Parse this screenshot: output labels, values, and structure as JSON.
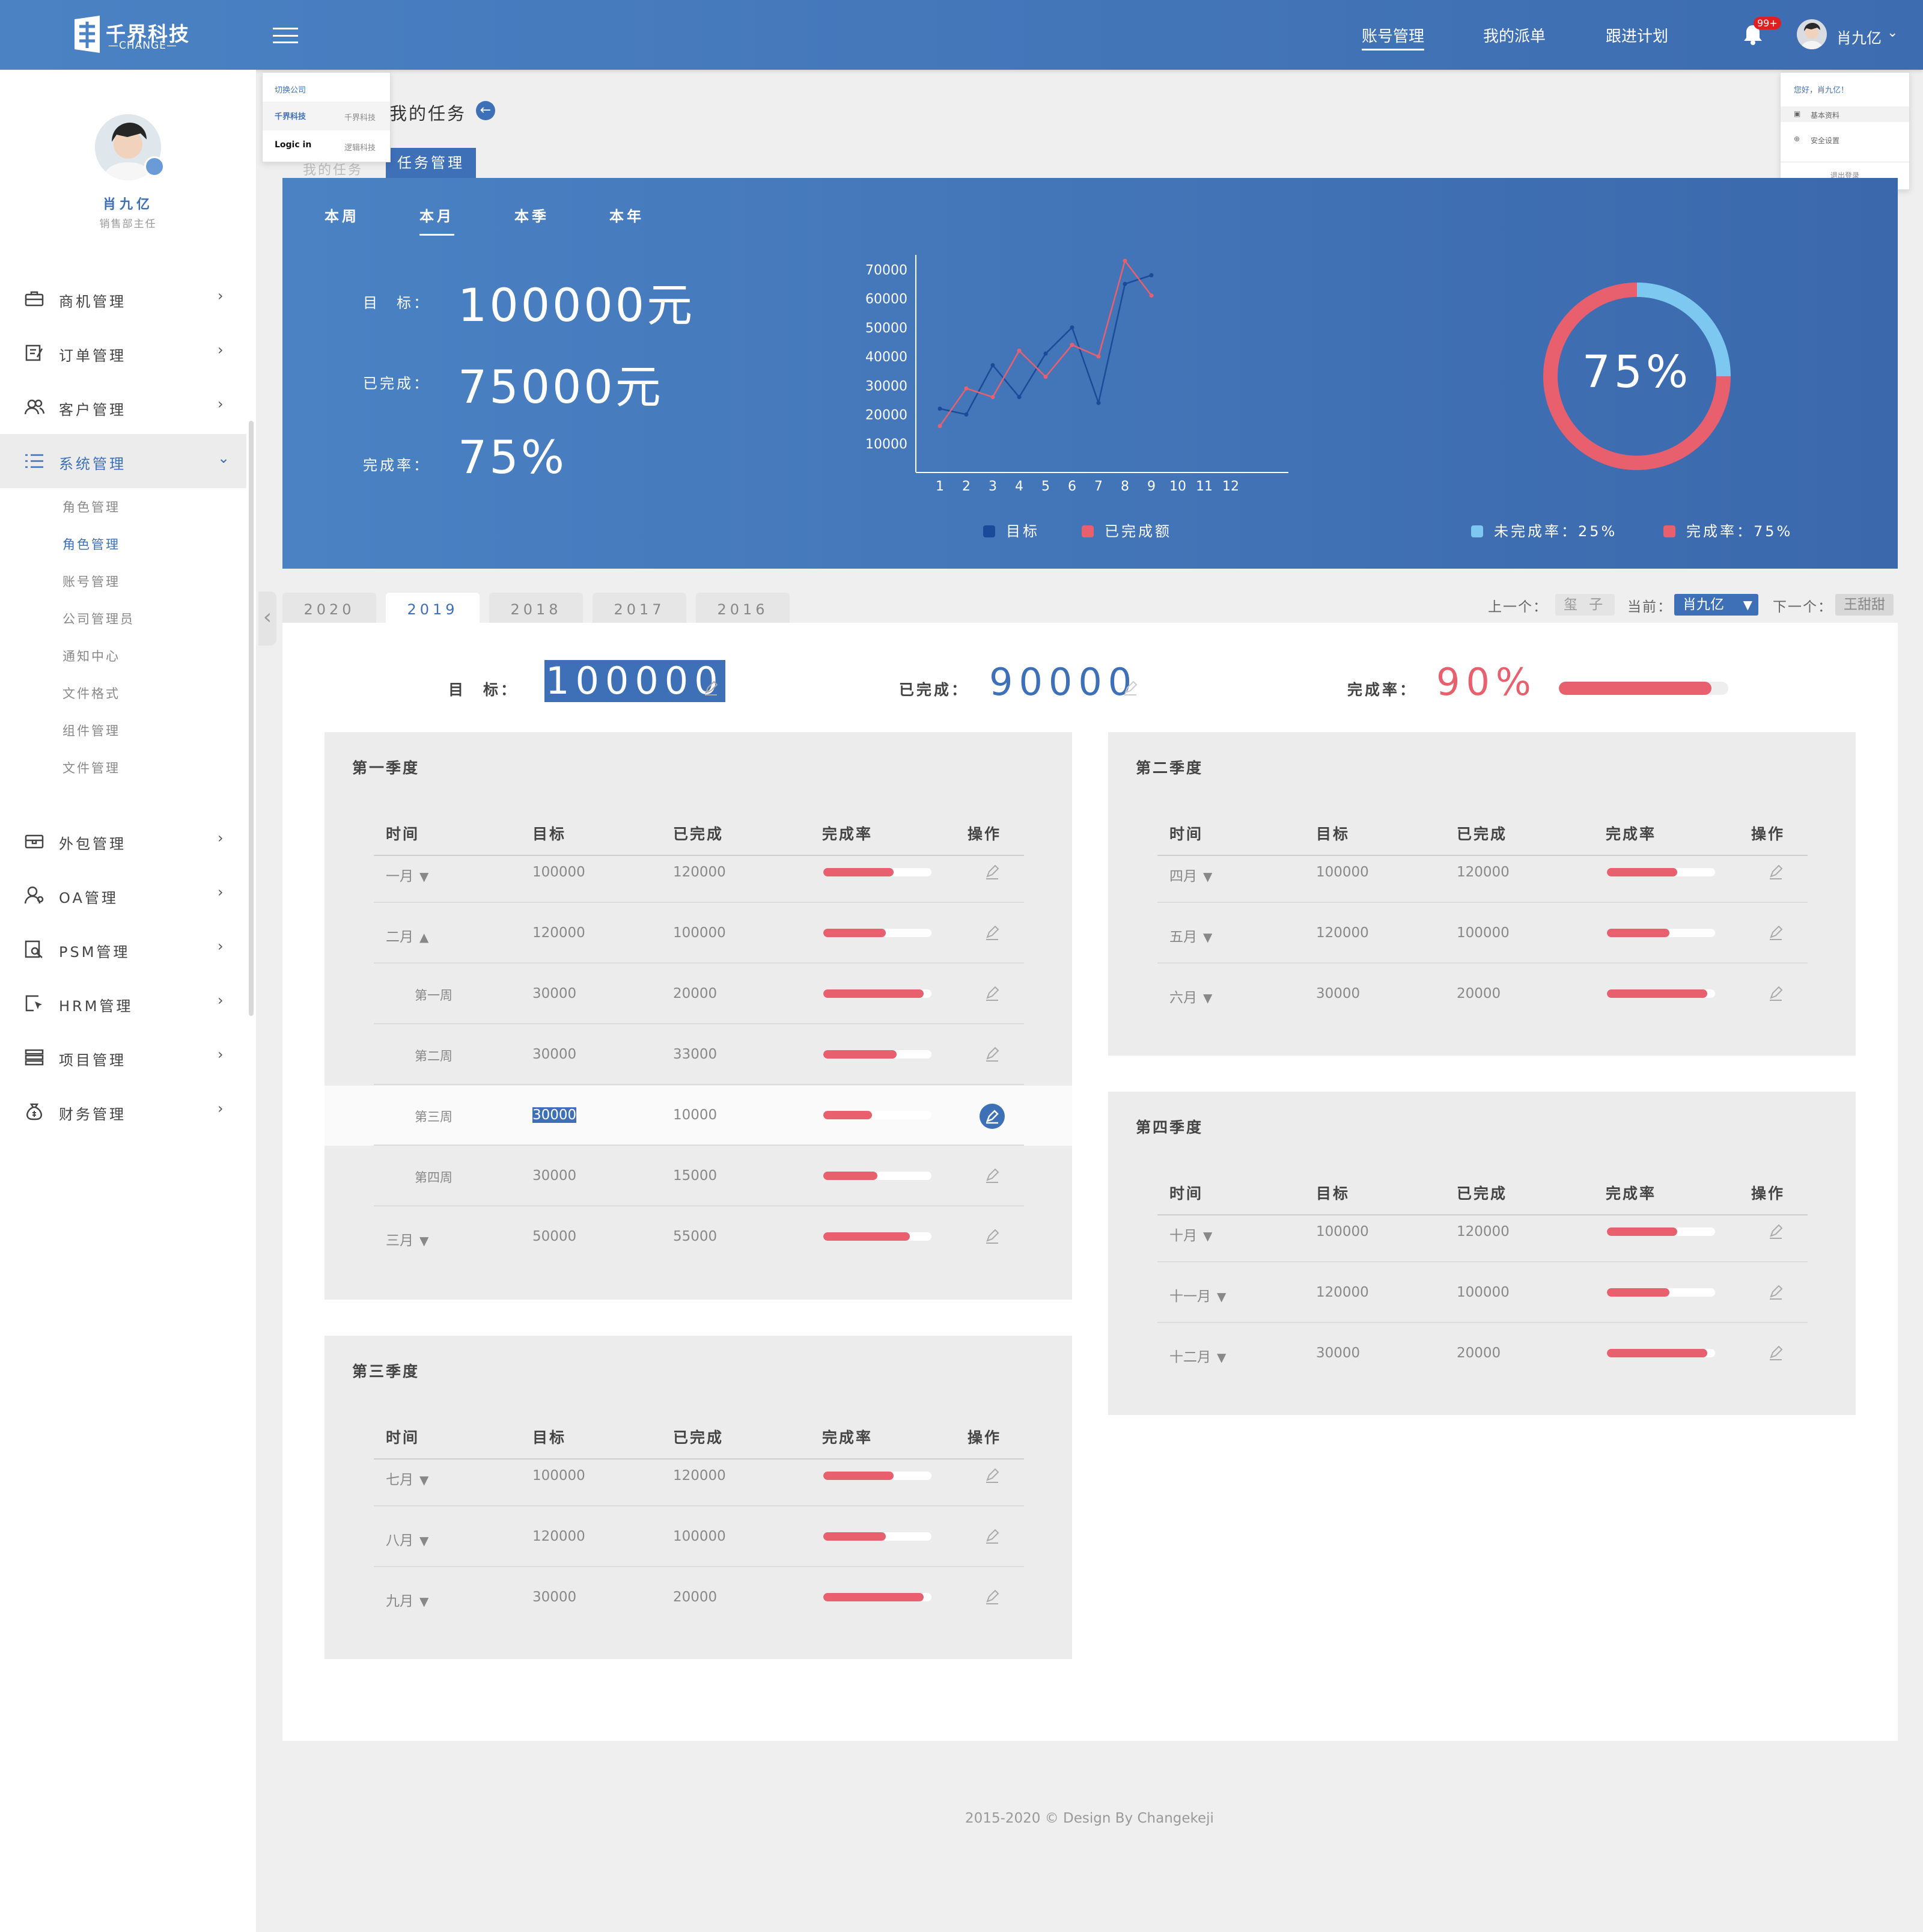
{
  "header": {
    "logo_text": "千界科技",
    "logo_sub": "—CHANGE—",
    "nav": [
      "账号管理",
      "我的派单",
      "跟进计划"
    ],
    "notify_count": "99+",
    "user_name": "肖九亿",
    "accent": "#3e70b8"
  },
  "company_popup": {
    "title": "切换公司",
    "items": [
      {
        "logo": "千界科技",
        "name": "千界科技"
      },
      {
        "logo": "Logic in",
        "name": "逻辑科技"
      }
    ]
  },
  "user_popup": {
    "greeting": "您好，肖九亿！",
    "items": [
      "基本资料",
      "安全设置"
    ],
    "logout": "退出登录"
  },
  "sidebar": {
    "user_name": "肖九亿",
    "user_role": "销售部主任",
    "menu_top": [
      "商机管理",
      "订单管理",
      "客户管理",
      "系统管理"
    ],
    "submenu": [
      "角色管理",
      "角色管理",
      "账号管理",
      "公司管理员",
      "通知中心",
      "文件格式",
      "组件管理",
      "文件管理"
    ],
    "menu_bottom": [
      "外包管理",
      "OA管理",
      "PSM管理",
      "HRM管理",
      "项目管理",
      "财务管理"
    ]
  },
  "breadcrumb": {
    "title": "我的任务",
    "tab": "任务管理",
    "tab_ghost": "我的任务"
  },
  "banner": {
    "periods": [
      "本周",
      "本月",
      "本季",
      "本年"
    ],
    "active_period": "本月",
    "kpi": [
      {
        "label": "目　标：",
        "value": "100000元"
      },
      {
        "label": "已完成：",
        "value": "75000元"
      },
      {
        "label": "完成率：",
        "value": "75%"
      }
    ],
    "donut_text": "75%",
    "donut_legend": [
      "未完成率：25%",
      "完成率：75%"
    ],
    "line_legend": [
      "目标",
      "已完成额"
    ],
    "colors": {
      "target": "#1c4a9a",
      "done": "#e8606e",
      "incomplete": "#7dc8f0"
    }
  },
  "chart_data": [
    {
      "type": "line",
      "x": [
        1,
        2,
        3,
        4,
        5,
        6,
        7,
        8,
        9,
        10,
        11,
        12
      ],
      "y_ticks": [
        10000,
        20000,
        30000,
        40000,
        50000,
        60000,
        70000
      ],
      "ylim": [
        0,
        80000
      ],
      "series": [
        {
          "name": "目标",
          "values": [
            22000,
            20000,
            37000,
            26000,
            41000,
            50000,
            24000,
            65000,
            68000,
            null,
            null,
            null
          ]
        },
        {
          "name": "已完成额",
          "values": [
            16000,
            29000,
            26000,
            42000,
            33000,
            44000,
            40000,
            73000,
            61000,
            null,
            null,
            null
          ]
        }
      ]
    },
    {
      "type": "pie",
      "labels": [
        "未完成率",
        "完成率"
      ],
      "values": [
        25,
        75
      ]
    }
  ],
  "years": {
    "tabs": [
      "2020",
      "2019",
      "2018",
      "2017",
      "2016"
    ],
    "active": "2019"
  },
  "navigator": {
    "prev_label": "上一个：",
    "prev": "玺 子",
    "cur_label": "当前：",
    "cur": "肖九亿",
    "next_label": "下一个：",
    "next": "王甜甜"
  },
  "summary": {
    "target_label": "目　标：",
    "target": "100000",
    "done_label": "已完成：",
    "done": "90000",
    "rate_label": "完成率：",
    "rate": "90%",
    "rate_value": 0.9
  },
  "table_headers": [
    "时间",
    "目标",
    "已完成",
    "完成率",
    "操作"
  ],
  "quarters": [
    {
      "title": "第一季度",
      "rows": [
        {
          "time": "一月",
          "arrow": "▼",
          "target": "100000",
          "done": "120000",
          "rate": 0.65
        },
        {
          "time": "二月",
          "arrow": "▲",
          "target": "120000",
          "done": "100000",
          "rate": 0.58
        },
        {
          "time": "第一周",
          "arrow": "",
          "target": "30000",
          "done": "20000",
          "rate": 0.93,
          "sub": true
        },
        {
          "time": "第二周",
          "arrow": "",
          "target": "30000",
          "done": "33000",
          "rate": 0.68,
          "sub": true
        },
        {
          "time": "第三周",
          "arrow": "",
          "target": "30000",
          "done": "10000",
          "rate": 0.45,
          "sub": true,
          "hl": true
        },
        {
          "time": "第四周",
          "arrow": "",
          "target": "30000",
          "done": "15000",
          "rate": 0.5,
          "sub": true
        },
        {
          "time": "三月",
          "arrow": "▼",
          "target": "50000",
          "done": "55000",
          "rate": 0.8
        }
      ]
    },
    {
      "title": "第二季度",
      "rows": [
        {
          "time": "四月",
          "arrow": "▼",
          "target": "100000",
          "done": "120000",
          "rate": 0.65
        },
        {
          "time": "五月",
          "arrow": "▼",
          "target": "120000",
          "done": "100000",
          "rate": 0.58
        },
        {
          "time": "六月",
          "arrow": "▼",
          "target": "30000",
          "done": "20000",
          "rate": 0.93
        }
      ]
    },
    {
      "title": "第三季度",
      "rows": [
        {
          "time": "七月",
          "arrow": "▼",
          "target": "100000",
          "done": "120000",
          "rate": 0.65
        },
        {
          "time": "八月",
          "arrow": "▼",
          "target": "120000",
          "done": "100000",
          "rate": 0.58
        },
        {
          "time": "九月",
          "arrow": "▼",
          "target": "30000",
          "done": "20000",
          "rate": 0.93
        }
      ]
    },
    {
      "title": "第四季度",
      "rows": [
        {
          "time": "十月",
          "arrow": "▼",
          "target": "100000",
          "done": "120000",
          "rate": 0.65
        },
        {
          "time": "十一月",
          "arrow": "▼",
          "target": "120000",
          "done": "100000",
          "rate": 0.58
        },
        {
          "time": "十二月",
          "arrow": "▼",
          "target": "30000",
          "done": "20000",
          "rate": 0.93
        }
      ]
    }
  ],
  "footer": "2015-2020 © Design By Changekeji"
}
